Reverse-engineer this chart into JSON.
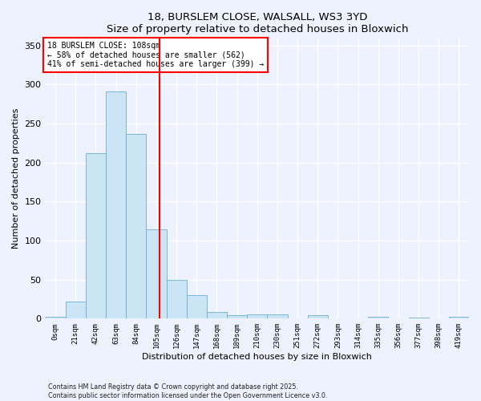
{
  "title": "18, BURSLEM CLOSE, WALSALL, WS3 3YD",
  "subtitle": "Size of property relative to detached houses in Bloxwich",
  "xlabel": "Distribution of detached houses by size in Bloxwich",
  "ylabel": "Number of detached properties",
  "bin_labels": [
    "0sqm",
    "21sqm",
    "42sqm",
    "63sqm",
    "84sqm",
    "105sqm",
    "126sqm",
    "147sqm",
    "168sqm",
    "189sqm",
    "210sqm",
    "230sqm",
    "251sqm",
    "272sqm",
    "293sqm",
    "314sqm",
    "335sqm",
    "356sqm",
    "377sqm",
    "398sqm",
    "419sqm"
  ],
  "bar_values": [
    2,
    22,
    212,
    291,
    237,
    114,
    50,
    30,
    9,
    4,
    5,
    5,
    0,
    4,
    0,
    0,
    2,
    0,
    1,
    0,
    2
  ],
  "bar_color": "#cce5f5",
  "bar_edge_color": "#6baed6",
  "vline_color": "red",
  "annotation_title": "18 BURSLEM CLOSE: 108sqm",
  "annotation_line1": "← 58% of detached houses are smaller (562)",
  "annotation_line2": "41% of semi-detached houses are larger (399) →",
  "ylim": [
    0,
    360
  ],
  "yticks": [
    0,
    50,
    100,
    150,
    200,
    250,
    300,
    350
  ],
  "footer_line1": "Contains HM Land Registry data © Crown copyright and database right 2025.",
  "footer_line2": "Contains public sector information licensed under the Open Government Licence v3.0.",
  "bg_color": "#eef2ff",
  "plot_bg_color": "#eef2ff",
  "grid_color": "#ffffff"
}
